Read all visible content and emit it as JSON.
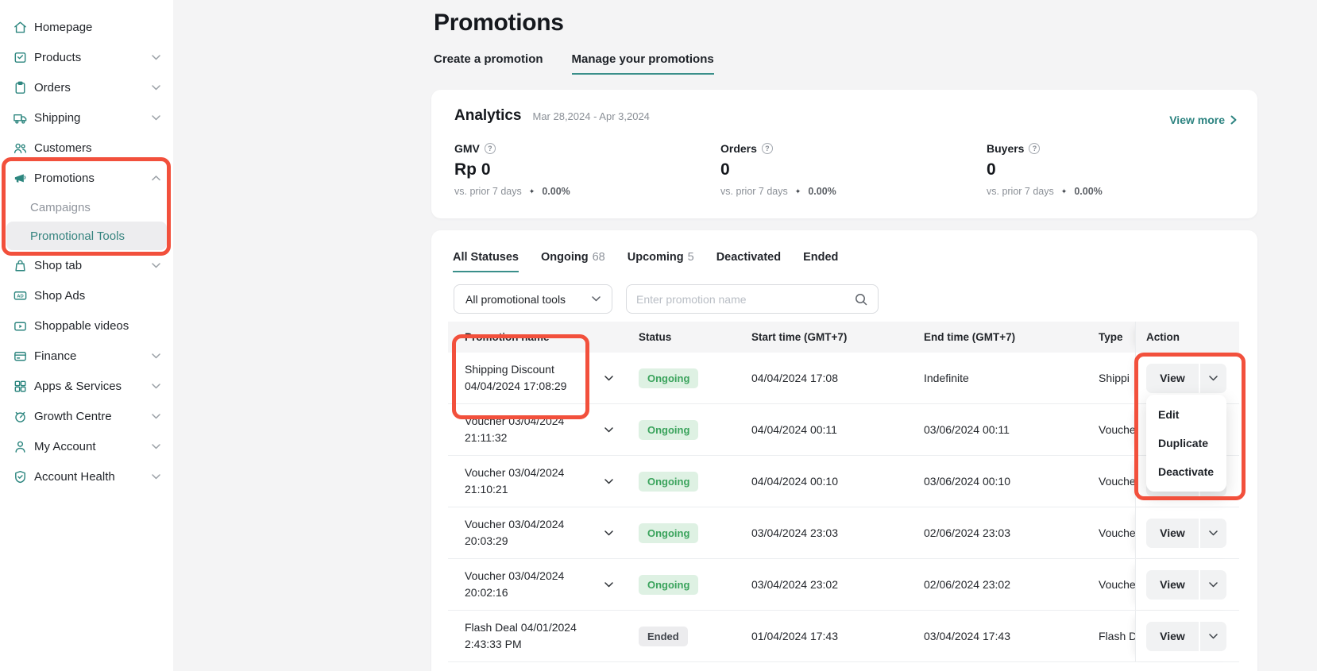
{
  "sidebar": {
    "items": [
      {
        "label": "Homepage",
        "icon": "home-icon",
        "chevron": null
      },
      {
        "label": "Products",
        "icon": "products-icon",
        "chevron": "down"
      },
      {
        "label": "Orders",
        "icon": "orders-icon",
        "chevron": "down"
      },
      {
        "label": "Shipping",
        "icon": "shipping-icon",
        "chevron": "down"
      },
      {
        "label": "Customers",
        "icon": "customers-icon",
        "chevron": null
      },
      {
        "label": "Promotions",
        "icon": "megaphone-icon",
        "chevron": "up",
        "expanded": true,
        "children": [
          {
            "label": "Campaigns",
            "active": false
          },
          {
            "label": "Promotional Tools",
            "active": true
          }
        ]
      },
      {
        "label": "Shop tab",
        "icon": "bag-icon",
        "chevron": "down"
      },
      {
        "label": "Shop Ads",
        "icon": "ad-icon",
        "chevron": null
      },
      {
        "label": "Shoppable videos",
        "icon": "video-icon",
        "chevron": null
      },
      {
        "label": "Finance",
        "icon": "finance-icon",
        "chevron": "down"
      },
      {
        "label": "Apps & Services",
        "icon": "apps-icon",
        "chevron": "down"
      },
      {
        "label": "Growth Centre",
        "icon": "growth-icon",
        "chevron": "down"
      },
      {
        "label": "My Account",
        "icon": "person-icon",
        "chevron": "down"
      },
      {
        "label": "Account Health",
        "icon": "shield-icon",
        "chevron": "down"
      }
    ]
  },
  "page": {
    "title": "Promotions",
    "tabs": [
      {
        "label": "Create a promotion",
        "active": false
      },
      {
        "label": "Manage your promotions",
        "active": true
      }
    ]
  },
  "analytics": {
    "heading": "Analytics",
    "date_range": "Mar 28,2024 - Apr 3,2024",
    "view_more_label": "View more",
    "metrics": [
      {
        "label": "GMV",
        "value": "Rp 0",
        "note": "vs. prior 7 days",
        "delta": "0.00%"
      },
      {
        "label": "Orders",
        "value": "0",
        "note": "vs. prior 7 days",
        "delta": "0.00%"
      },
      {
        "label": "Buyers",
        "value": "0",
        "note": "vs. prior 7 days",
        "delta": "0.00%"
      }
    ]
  },
  "promotions_panel": {
    "status_tabs": [
      {
        "label": "All Statuses",
        "count": "",
        "active": true
      },
      {
        "label": "Ongoing",
        "count": "68",
        "active": false
      },
      {
        "label": "Upcoming",
        "count": "5",
        "active": false
      },
      {
        "label": "Deactivated",
        "count": "",
        "active": false
      },
      {
        "label": "Ended",
        "count": "",
        "active": false
      }
    ],
    "tool_filter_value": "All promotional tools",
    "search_placeholder": "Enter promotion name",
    "table": {
      "columns": [
        "Promotion name",
        "Status",
        "Start time (GMT+7)",
        "End time (GMT+7)",
        "Type",
        "Action"
      ],
      "rows": [
        {
          "name": "Shipping Discount 04/04/2024 17:08:29",
          "expander": true,
          "status": "Ongoing",
          "status_kind": "ongoing",
          "start": "04/04/2024 17:08",
          "end": "Indefinite",
          "type_visible": "Shippi",
          "action_label": "View"
        },
        {
          "name": "Voucher 03/04/2024 21:11:32",
          "expander": true,
          "status": "Ongoing",
          "status_kind": "ongoing",
          "start": "04/04/2024 00:11",
          "end": "03/06/2024 00:11",
          "type_visible": "Vouche",
          "action_label": "View"
        },
        {
          "name": "Voucher 03/04/2024 21:10:21",
          "expander": true,
          "status": "Ongoing",
          "status_kind": "ongoing",
          "start": "04/04/2024 00:10",
          "end": "03/06/2024 00:10",
          "type_visible": "Vouche",
          "action_label": "View"
        },
        {
          "name": "Voucher 03/04/2024 20:03:29",
          "expander": true,
          "status": "Ongoing",
          "status_kind": "ongoing",
          "start": "03/04/2024 23:03",
          "end": "02/06/2024 23:03",
          "type_visible": "Vouche",
          "action_label": "View"
        },
        {
          "name": "Voucher 03/04/2024 20:02:16",
          "expander": true,
          "status": "Ongoing",
          "status_kind": "ongoing",
          "start": "03/04/2024 23:02",
          "end": "02/06/2024 23:02",
          "type_visible": "Vouche",
          "action_label": "View"
        },
        {
          "name": "Flash Deal 04/01/2024 2:43:33 PM",
          "expander": false,
          "status": "Ended",
          "status_kind": "ended",
          "start": "01/04/2024 17:43",
          "end": "03/04/2024 17:43",
          "type_visible": "Flash D",
          "action_label": "View"
        }
      ]
    },
    "action_menu": [
      "Edit",
      "Duplicate",
      "Deactivate"
    ]
  },
  "colors": {
    "accent_teal": "#2c8380",
    "teal_underline": "#3a8f8a",
    "annotation_red": "#f2503c",
    "ongoing_text": "#3aa35c",
    "ongoing_bg": "#def1e3",
    "ended_text": "#41454c",
    "ended_bg": "#ececee",
    "page_bg": "#f4f4f5",
    "table_header_bg": "#f5f5f6"
  }
}
